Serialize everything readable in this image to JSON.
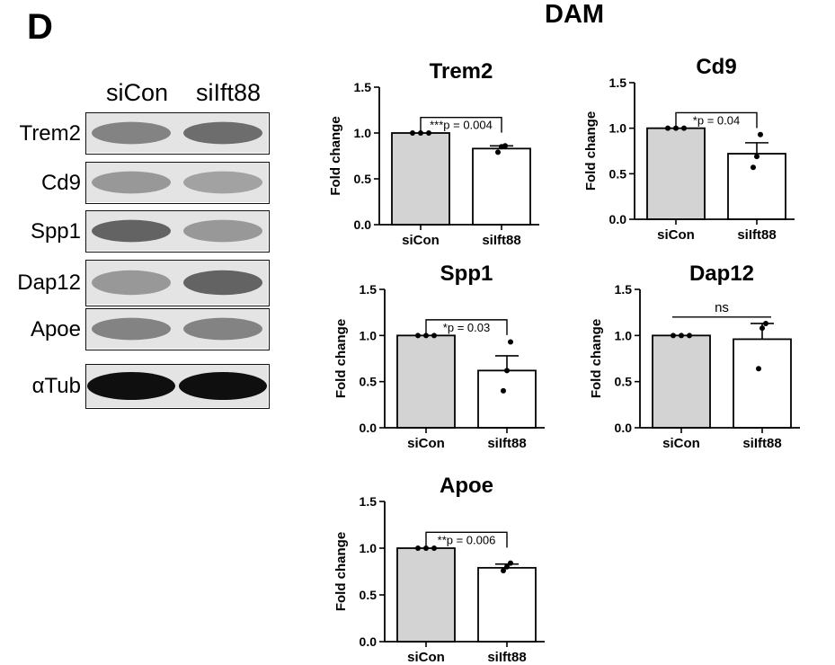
{
  "figure": {
    "panel_letter": "D",
    "group_title": "DAM"
  },
  "blot": {
    "lanes": [
      "siCon",
      "siIft88"
    ],
    "rows": [
      {
        "label": "Trem2",
        "intensity": [
          0.45,
          0.55
        ]
      },
      {
        "label": "Cd9",
        "intensity": [
          0.35,
          0.3
        ]
      },
      {
        "label": "Spp1",
        "intensity": [
          0.6,
          0.35
        ]
      },
      {
        "label": "Dap12",
        "intensity": [
          0.35,
          0.6
        ]
      },
      {
        "label": "Apoe",
        "intensity": [
          0.45,
          0.45
        ]
      },
      {
        "label": "αTub",
        "intensity": [
          1.0,
          1.0
        ]
      }
    ]
  },
  "chart_data": [
    {
      "type": "bar",
      "title": "Trem2",
      "ylabel": "Fold change",
      "categories": [
        "siCon",
        "siIft88"
      ],
      "values": [
        1.0,
        0.83
      ],
      "errors": [
        0.0,
        0.03
      ],
      "points": [
        [
          1.0,
          1.0,
          1.0
        ],
        [
          0.79,
          0.85,
          0.86
        ]
      ],
      "ylim": [
        0,
        1.5
      ],
      "yticks": [
        "0.0",
        "0.5",
        "1.0",
        "1.5"
      ],
      "annotation": "***p = 0.004",
      "bracket_y": 1.17,
      "colors": [
        "#d3d3d3",
        "#ffffff"
      ]
    },
    {
      "type": "bar",
      "title": "Cd9",
      "ylabel": "Fold change",
      "categories": [
        "siCon",
        "siIft88"
      ],
      "values": [
        1.0,
        0.72
      ],
      "errors": [
        0.0,
        0.12
      ],
      "points": [
        [
          1.0,
          1.0,
          1.0
        ],
        [
          0.57,
          0.69,
          0.93
        ]
      ],
      "ylim": [
        0,
        1.5
      ],
      "yticks": [
        "0.0",
        "0.5",
        "1.0",
        "1.5"
      ],
      "annotation": "*p = 0.04",
      "bracket_y": 1.17,
      "colors": [
        "#d3d3d3",
        "#ffffff"
      ]
    },
    {
      "type": "bar",
      "title": "Spp1",
      "ylabel": "Fold change",
      "categories": [
        "siCon",
        "siIft88"
      ],
      "values": [
        1.0,
        0.62
      ],
      "errors": [
        0.0,
        0.16
      ],
      "points": [
        [
          1.0,
          1.0,
          1.0
        ],
        [
          0.4,
          0.62,
          0.93
        ]
      ],
      "ylim": [
        0,
        1.5
      ],
      "yticks": [
        "0.0",
        "0.5",
        "1.0",
        "1.5"
      ],
      "annotation": "*p = 0.03",
      "bracket_y": 1.17,
      "colors": [
        "#d3d3d3",
        "#ffffff"
      ]
    },
    {
      "type": "bar",
      "title": "Dap12",
      "ylabel": "Fold change",
      "categories": [
        "siCon",
        "siIft88"
      ],
      "values": [
        1.0,
        0.96
      ],
      "errors": [
        0.0,
        0.17
      ],
      "points": [
        [
          1.0,
          1.0,
          1.0
        ],
        [
          0.64,
          1.08,
          1.13
        ]
      ],
      "ylim": [
        0,
        1.5
      ],
      "yticks": [
        "0.0",
        "0.5",
        "1.0",
        "1.5"
      ],
      "annotation": "ns",
      "bracket_y": 1.2,
      "bracket_flat": true,
      "colors": [
        "#d3d3d3",
        "#ffffff"
      ]
    },
    {
      "type": "bar",
      "title": "Apoe",
      "ylabel": "Fold change",
      "categories": [
        "siCon",
        "siIft88"
      ],
      "values": [
        1.0,
        0.79
      ],
      "errors": [
        0.0,
        0.04
      ],
      "points": [
        [
          1.0,
          1.0,
          1.0
        ],
        [
          0.76,
          0.8,
          0.84
        ]
      ],
      "ylim": [
        0,
        1.5
      ],
      "yticks": [
        "0.0",
        "0.5",
        "1.0",
        "1.5"
      ],
      "annotation": "**p = 0.006",
      "bracket_y": 1.17,
      "colors": [
        "#d3d3d3",
        "#ffffff"
      ]
    }
  ]
}
